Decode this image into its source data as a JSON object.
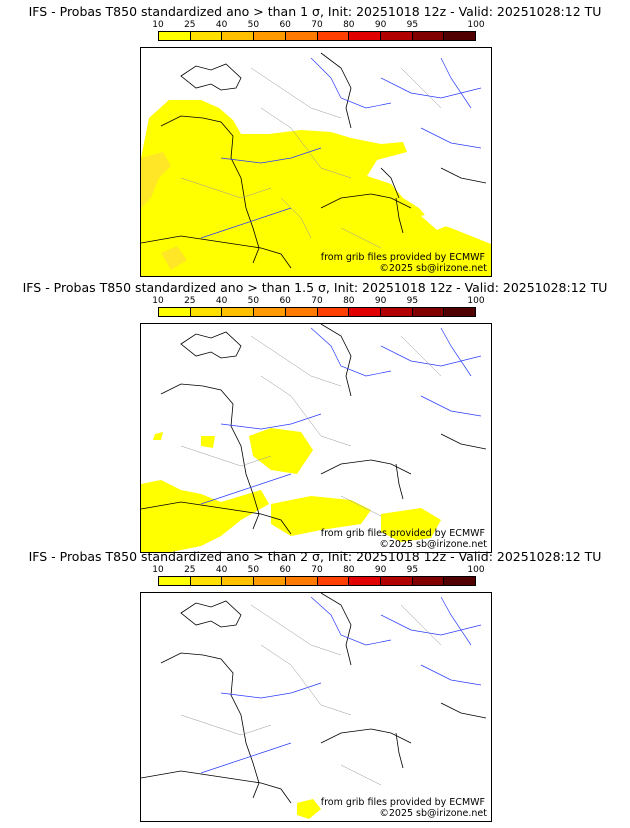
{
  "colorbar": {
    "labels": [
      "10",
      "25",
      "40",
      "50",
      "60",
      "70",
      "80",
      "90",
      "95",
      "100"
    ],
    "colors": [
      "#ffff00",
      "#ffe000",
      "#ffc000",
      "#ff9a00",
      "#ff7a00",
      "#ff4000",
      "#e00000",
      "#b00000",
      "#800000",
      "#500000"
    ]
  },
  "panels": [
    {
      "title": "IFS - Probas T850  standardized ano > than 1 σ, Init: 20251018 12z - Valid: 20251028:12 TU",
      "source": "from grib files provided by ECMWF",
      "copyright": "©2025 sb@irizone.net"
    },
    {
      "title": "IFS - Probas T850  standardized ano > than 1.5 σ, Init: 20251018 12z - Valid: 20251028:12 TU",
      "source": "from grib files provided by ECMWF",
      "copyright": "©2025 sb@irizone.net"
    },
    {
      "title": "IFS - Probas T850  standardized ano > than 2 σ, Init: 20251018 12z - Valid: 20251028:12 TU",
      "source": "from grib files provided by ECMWF",
      "copyright": "©2025 sb@irizone.net"
    }
  ]
}
